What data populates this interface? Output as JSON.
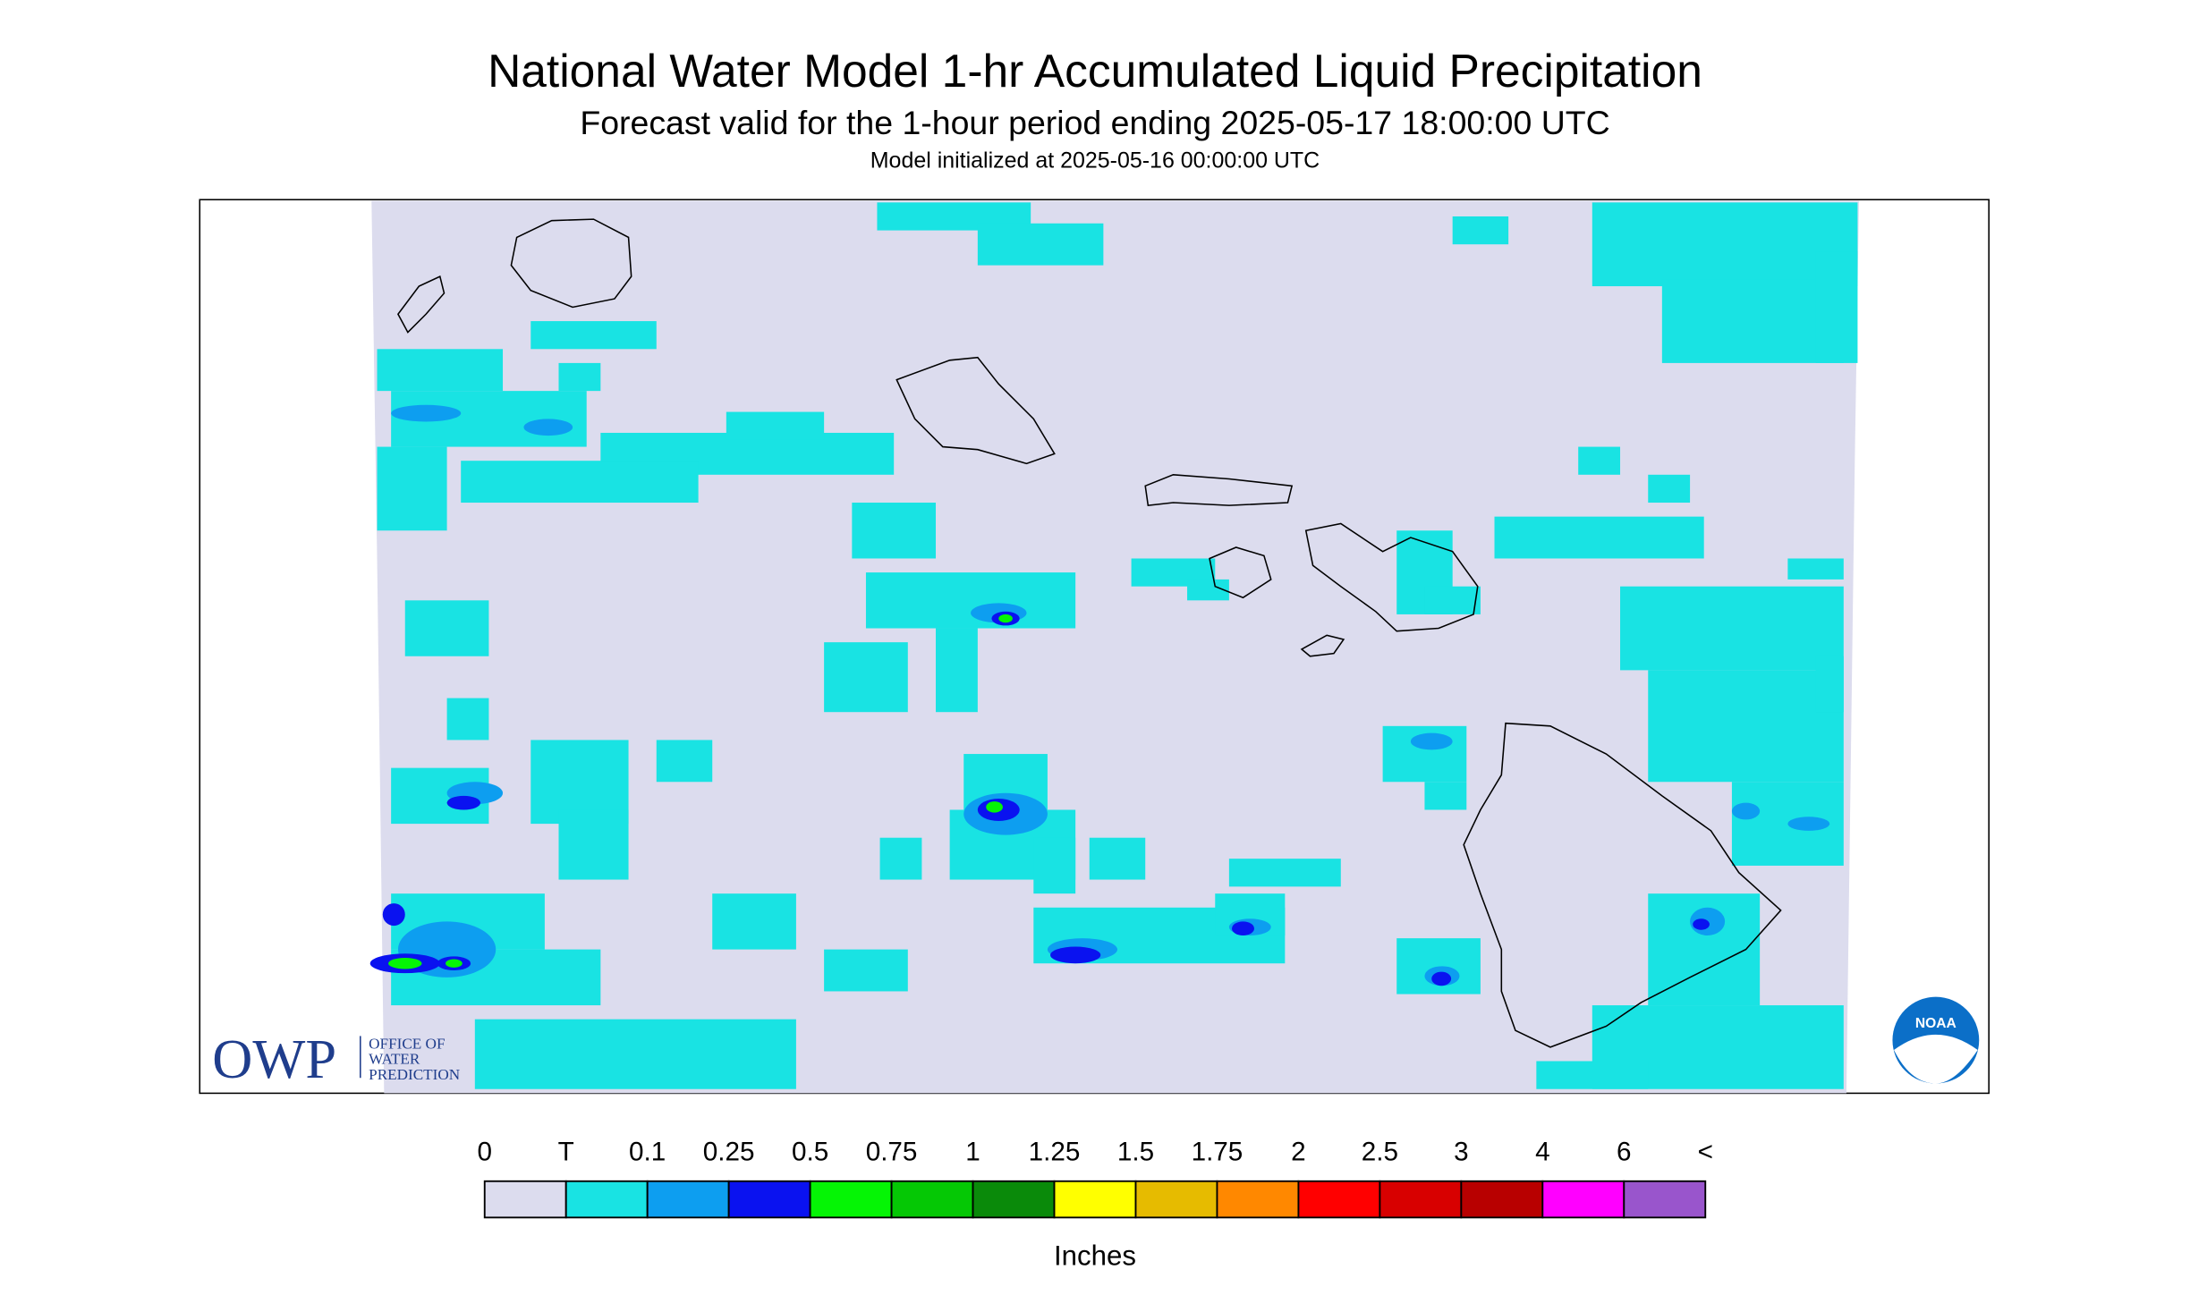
{
  "header": {
    "title": "National Water Model 1-hr Accumulated Liquid Precipitation",
    "subtitle": "Forecast valid for the 1-hour period ending 2025-05-17 18:00:00 UTC",
    "init": "Model initialized at 2025-05-16 00:00:00 UTC"
  },
  "logos": {
    "owp": "OWP",
    "owp_text": [
      "OFFICE OF",
      "WATER",
      "PREDICTION"
    ],
    "noaa": "NOAA"
  },
  "legend": {
    "labels": [
      "0",
      "T",
      "0.1",
      "0.25",
      "0.5",
      "0.75",
      "1",
      "1.25",
      "1.5",
      "1.75",
      "2",
      "2.5",
      "3",
      "4",
      "6",
      "<"
    ],
    "colors": [
      "#dcdcee",
      "#19e3e3",
      "#0d9ef0",
      "#0a12f0",
      "#05f505",
      "#05c805",
      "#0a8a0a",
      "#ffff00",
      "#e6bb00",
      "#ff8800",
      "#ff0000",
      "#d80000",
      "#b80000",
      "#ff00ff",
      "#9955cc"
    ],
    "units": "Inches"
  }
}
